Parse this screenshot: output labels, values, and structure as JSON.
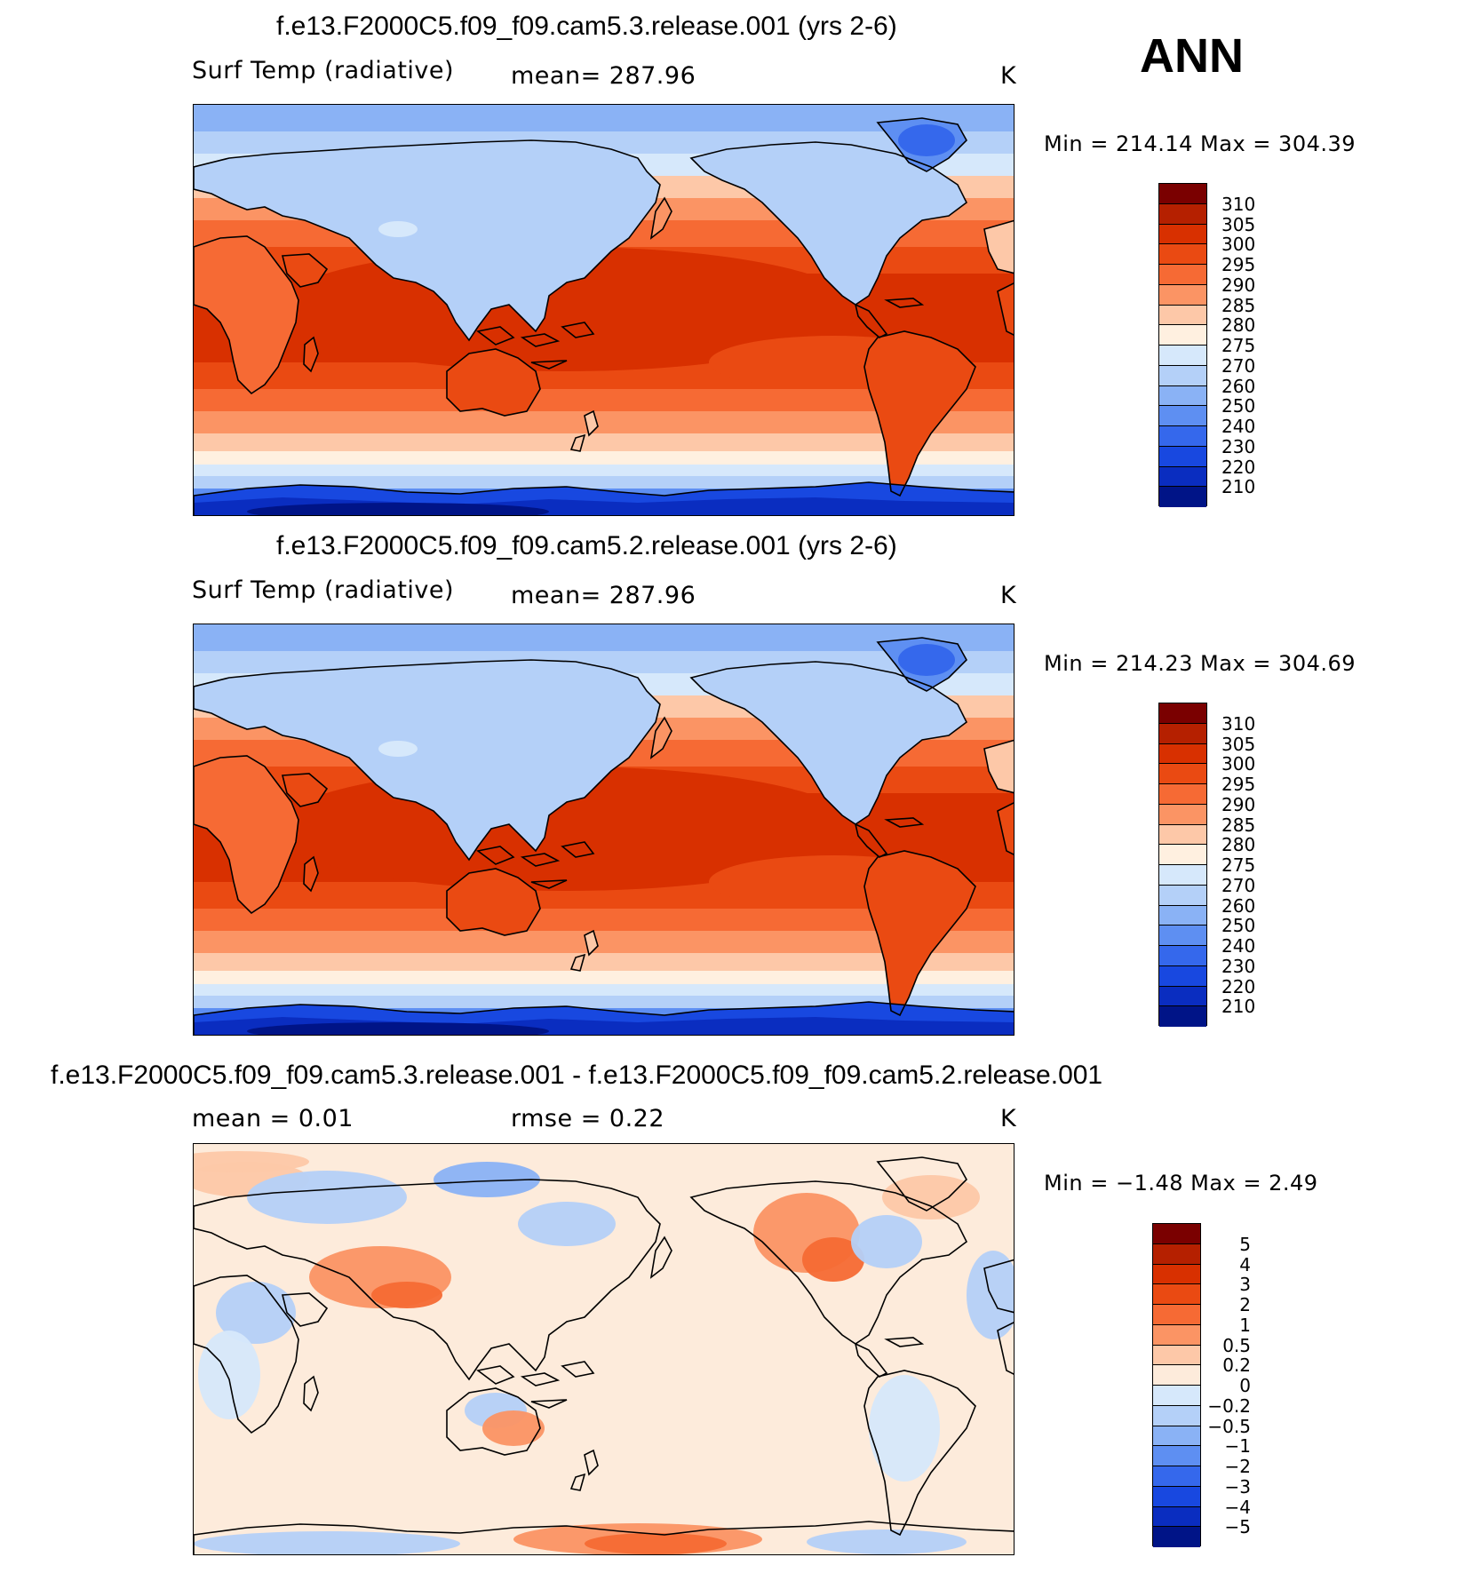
{
  "season": "ANN",
  "panels": [
    {
      "id": "top",
      "title": "f.e13.F2000C5.f09_f09.cam5.3.release.001 (yrs 2-6)",
      "left_text": "Surf Temp (radiative)",
      "mid_text": "mean=  287.96",
      "units": "K",
      "minmax": "Min  =  214.14  Max  =  304.39",
      "kind": "field"
    },
    {
      "id": "middle",
      "title": "f.e13.F2000C5.f09_f09.cam5.2.release.001 (yrs 2-6)",
      "left_text": "Surf Temp (radiative)",
      "mid_text": "mean=  287.96",
      "units": "K",
      "minmax": "Min  =  214.23  Max  =  304.69",
      "kind": "field"
    },
    {
      "id": "bottom",
      "title": "f.e13.F2000C5.f09_f09.cam5.3.release.001 - f.e13.F2000C5.f09_f09.cam5.2.release.001",
      "left_text": "mean =     0.01",
      "mid_text": "rmse =     0.22",
      "units": "K",
      "minmax": "Min  =    −1.48  Max  =     2.49",
      "kind": "diff"
    }
  ],
  "colorbars": {
    "field": {
      "labels": [
        "310",
        "305",
        "300",
        "295",
        "290",
        "285",
        "280",
        "275",
        "270",
        "260",
        "250",
        "240",
        "230",
        "220",
        "210"
      ],
      "colors": [
        "#7a0000",
        "#b52000",
        "#d83000",
        "#ea4a12",
        "#f66a34",
        "#fb9464",
        "#fdc8a8",
        "#fff0e0",
        "#d6e8fb",
        "#b4d0f8",
        "#8ab2f5",
        "#5e8ff2",
        "#3568ec",
        "#1848e0",
        "#0a2dc0",
        "#001487"
      ]
    },
    "diff": {
      "labels": [
        "5",
        "4",
        "3",
        "2",
        "1",
        "0.5",
        "0.2",
        "0",
        "−0.2",
        "−0.5",
        "−1",
        "−2",
        "−3",
        "−4",
        "−5"
      ],
      "colors": [
        "#7a0000",
        "#b52000",
        "#d83000",
        "#ea4a12",
        "#f66a34",
        "#fb9464",
        "#fdc8a8",
        "#fdebdb",
        "#d6e8fb",
        "#b4d0f8",
        "#8ab2f5",
        "#5e8ff2",
        "#3568ec",
        "#1848e0",
        "#0a2dc0",
        "#001487"
      ]
    }
  }
}
